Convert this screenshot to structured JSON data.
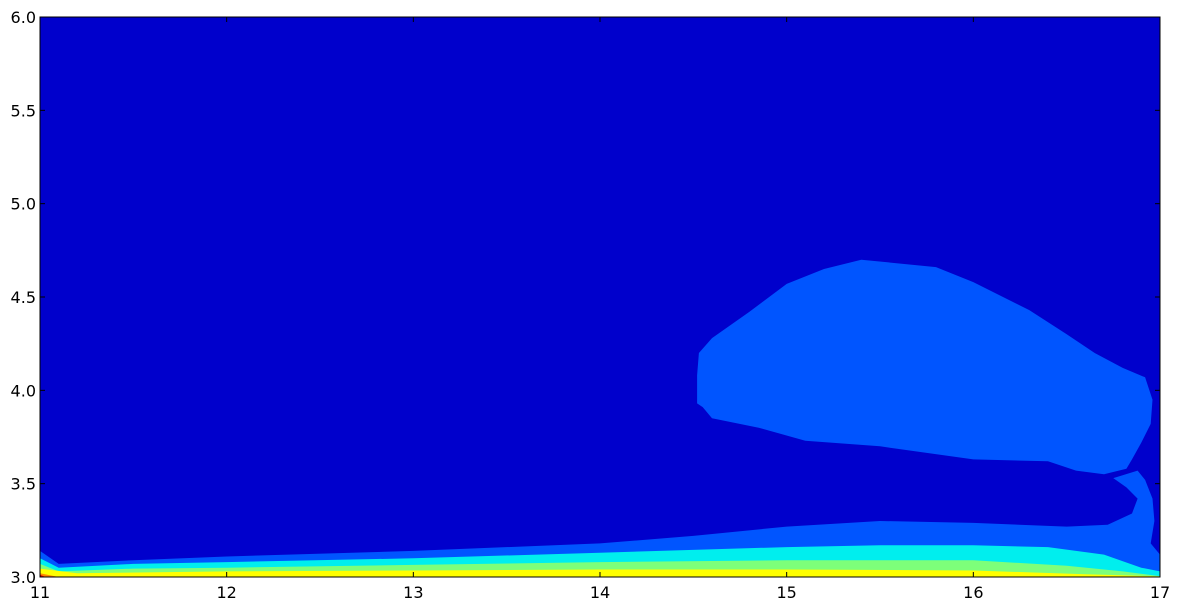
{
  "chart_data": {
    "type": "contour",
    "title": "",
    "xlabel": "",
    "ylabel": "",
    "xlim": [
      11,
      17
    ],
    "ylim": [
      3.0,
      6.0
    ],
    "x_ticks": [
      11,
      12,
      13,
      14,
      15,
      16,
      17
    ],
    "x_tick_labels": [
      "11",
      "12",
      "13",
      "14",
      "15",
      "16",
      "17"
    ],
    "y_ticks": [
      3.0,
      3.5,
      4.0,
      4.5,
      5.0,
      5.5,
      6.0
    ],
    "y_tick_labels": [
      "3.0",
      "3.5",
      "4.0",
      "4.5",
      "5.0",
      "5.5",
      "6.0"
    ],
    "grid": false,
    "legend": "none",
    "colormap": "jet",
    "background_level_color": "#0000cc",
    "filled_levels": [
      {
        "name": "level-2-lower-band",
        "color": "#0055ff",
        "boundary": [
          [
            11.0,
            3.14
          ],
          [
            11.1,
            3.07
          ],
          [
            11.5,
            3.09
          ],
          [
            12.0,
            3.11
          ],
          [
            13.0,
            3.14
          ],
          [
            14.0,
            3.18
          ],
          [
            14.5,
            3.22
          ],
          [
            15.0,
            3.27
          ],
          [
            15.5,
            3.3
          ],
          [
            16.0,
            3.29
          ],
          [
            16.5,
            3.27
          ],
          [
            16.72,
            3.28
          ],
          [
            16.85,
            3.34
          ],
          [
            16.88,
            3.42
          ],
          [
            16.82,
            3.48
          ],
          [
            16.75,
            3.53
          ],
          [
            16.88,
            3.57
          ],
          [
            16.92,
            3.52
          ],
          [
            16.96,
            3.42
          ],
          [
            16.97,
            3.3
          ],
          [
            16.95,
            3.18
          ],
          [
            17.0,
            3.12
          ],
          [
            17.0,
            3.0
          ],
          [
            11.0,
            3.0
          ]
        ]
      },
      {
        "name": "level-2-upper-blob",
        "color": "#0055ff",
        "boundary": [
          [
            14.55,
            3.91
          ],
          [
            14.6,
            3.85
          ],
          [
            14.85,
            3.8
          ],
          [
            15.1,
            3.73
          ],
          [
            15.5,
            3.7
          ],
          [
            16.0,
            3.63
          ],
          [
            16.4,
            3.62
          ],
          [
            16.55,
            3.57
          ],
          [
            16.7,
            3.55
          ],
          [
            16.82,
            3.58
          ],
          [
            16.85,
            3.63
          ],
          [
            16.9,
            3.72
          ],
          [
            16.95,
            3.82
          ],
          [
            16.96,
            3.95
          ],
          [
            16.92,
            4.07
          ],
          [
            16.8,
            4.12
          ],
          [
            16.65,
            4.2
          ],
          [
            16.5,
            4.3
          ],
          [
            16.3,
            4.43
          ],
          [
            16.0,
            4.58
          ],
          [
            15.8,
            4.66
          ],
          [
            15.4,
            4.7
          ],
          [
            15.2,
            4.65
          ],
          [
            15.0,
            4.57
          ],
          [
            14.8,
            4.42
          ],
          [
            14.6,
            4.28
          ],
          [
            14.53,
            4.2
          ],
          [
            14.52,
            4.08
          ],
          [
            14.52,
            3.93
          ]
        ]
      },
      {
        "name": "level-3",
        "color": "#00eeee",
        "boundary": [
          [
            11.0,
            3.1
          ],
          [
            11.1,
            3.05
          ],
          [
            11.5,
            3.07
          ],
          [
            12.0,
            3.08
          ],
          [
            13.0,
            3.1
          ],
          [
            14.0,
            3.13
          ],
          [
            15.0,
            3.16
          ],
          [
            15.5,
            3.17
          ],
          [
            16.0,
            3.17
          ],
          [
            16.4,
            3.16
          ],
          [
            16.7,
            3.12
          ],
          [
            16.9,
            3.05
          ],
          [
            17.0,
            3.03
          ],
          [
            17.0,
            3.0
          ],
          [
            11.0,
            3.0
          ]
        ]
      },
      {
        "name": "level-4",
        "color": "#7dff7a",
        "boundary": [
          [
            11.0,
            3.07
          ],
          [
            11.1,
            3.03
          ],
          [
            11.5,
            3.045
          ],
          [
            12.0,
            3.05
          ],
          [
            13.0,
            3.065
          ],
          [
            14.0,
            3.08
          ],
          [
            15.0,
            3.09
          ],
          [
            16.0,
            3.09
          ],
          [
            16.5,
            3.06
          ],
          [
            16.8,
            3.03
          ],
          [
            17.0,
            3.005
          ],
          [
            17.0,
            3.0
          ],
          [
            11.0,
            3.0
          ]
        ]
      },
      {
        "name": "level-5",
        "color": "#ffff00",
        "boundary": [
          [
            11.0,
            3.045
          ],
          [
            11.2,
            3.02
          ],
          [
            12.0,
            3.03
          ],
          [
            13.0,
            3.035
          ],
          [
            14.0,
            3.04
          ],
          [
            15.0,
            3.04
          ],
          [
            16.0,
            3.035
          ],
          [
            16.6,
            3.015
          ],
          [
            17.0,
            3.003
          ],
          [
            17.0,
            3.0
          ],
          [
            11.0,
            3.0
          ]
        ]
      },
      {
        "name": "level-6",
        "color": "#ff8800",
        "boundary": [
          [
            11.0,
            3.02
          ],
          [
            11.05,
            3.01
          ],
          [
            11.1,
            3.0
          ],
          [
            11.0,
            3.0
          ]
        ]
      },
      {
        "name": "level-7",
        "color": "#ee0000",
        "boundary": [
          [
            11.0,
            3.012
          ],
          [
            11.03,
            3.0
          ],
          [
            11.0,
            3.0
          ]
        ]
      }
    ]
  }
}
